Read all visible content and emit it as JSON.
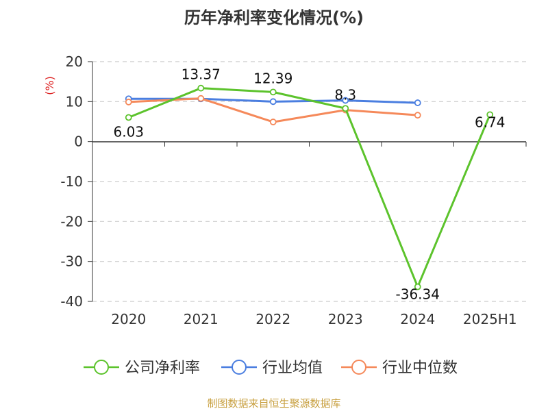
{
  "chart_data": {
    "type": "line",
    "title": "历年净利率变化情况(%)",
    "ylabel": "(%)",
    "categories": [
      "2020",
      "2021",
      "2022",
      "2023",
      "2024",
      "2025H1"
    ],
    "ylim": [
      -40,
      20
    ],
    "yticks": [
      20,
      10,
      0,
      -10,
      -20,
      -30,
      -40
    ],
    "grid": true,
    "legend_position": "bottom",
    "series": [
      {
        "name": "公司净利率",
        "color": "#5cc32c",
        "values": [
          6.03,
          13.37,
          12.39,
          8.3,
          -36.34,
          6.74
        ],
        "labels": [
          "6.03",
          "13.37",
          "12.39",
          "8.3",
          "-36.34",
          "6.74"
        ]
      },
      {
        "name": "行业均值",
        "color": "#4a7ee0",
        "values": [
          10.7,
          10.7,
          10.0,
          10.3,
          9.7,
          null
        ]
      },
      {
        "name": "行业中位数",
        "color": "#f5895a",
        "values": [
          9.9,
          10.8,
          4.9,
          7.9,
          6.6,
          null
        ]
      }
    ]
  },
  "source": {
    "text": "制图数据来自恒生聚源数据库",
    "color": "#c8a040"
  },
  "colors": {
    "unit_label": "#dd2222",
    "axis": "#333333",
    "grid": "#cccccc"
  }
}
